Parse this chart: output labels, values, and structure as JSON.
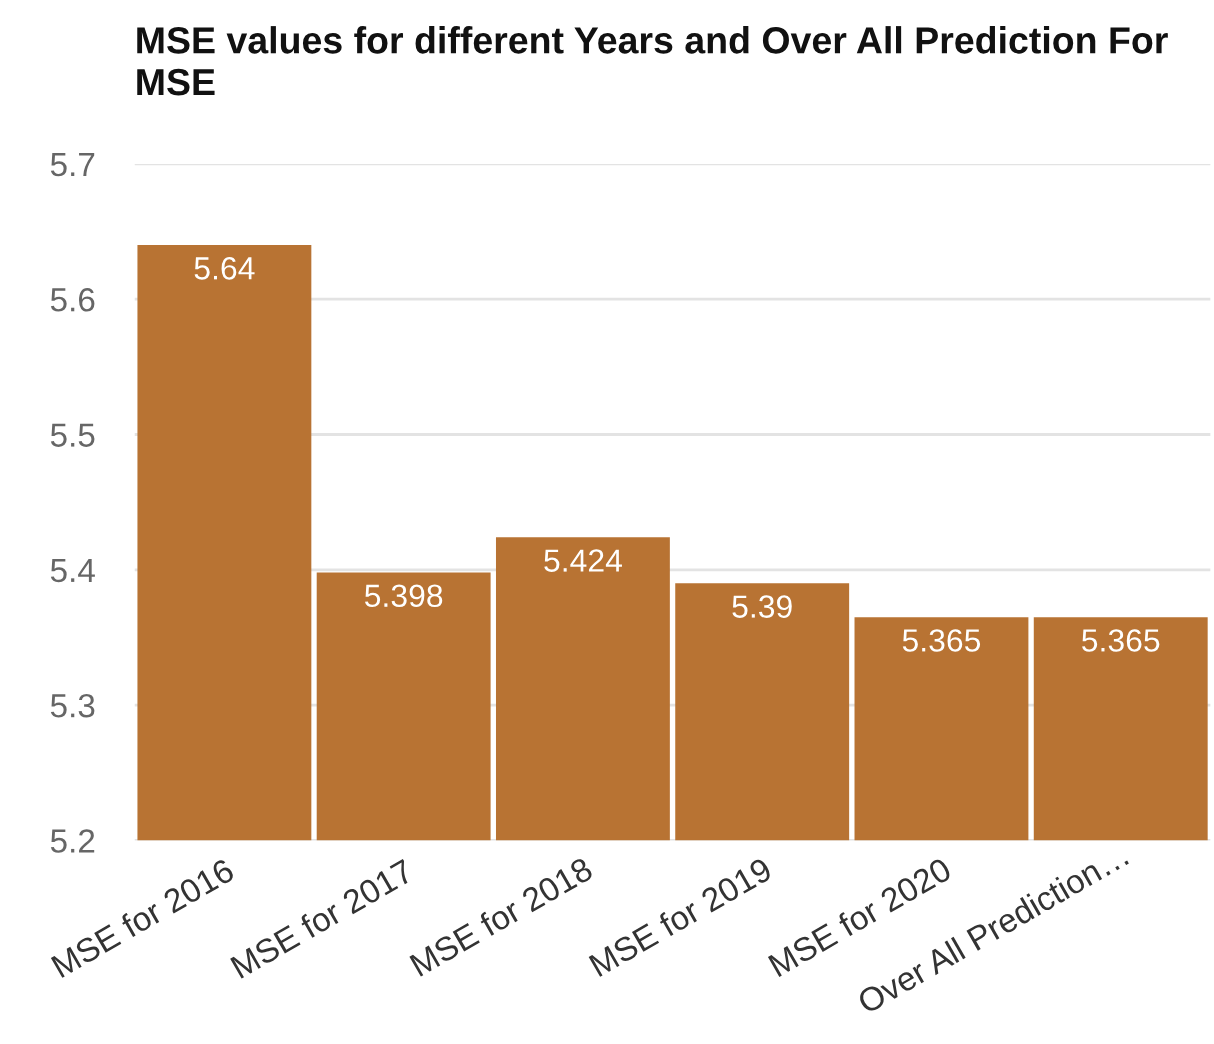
{
  "chart_data": {
    "type": "bar",
    "title": "MSE values for different Years and Over All Prediction For MSE",
    "categories": [
      "MSE for 2016",
      "MSE for 2017",
      "MSE for 2018",
      "MSE for 2019",
      "MSE for 2020",
      "Over All Prediction…"
    ],
    "values": [
      5.64,
      5.398,
      5.424,
      5.39,
      5.365,
      5.365
    ],
    "color": "#b87333",
    "ylim": [
      5.2,
      5.7
    ],
    "yticks": [
      5.2,
      5.3,
      5.4,
      5.5,
      5.6,
      5.7
    ],
    "grid": "y",
    "data_labels": true
  }
}
